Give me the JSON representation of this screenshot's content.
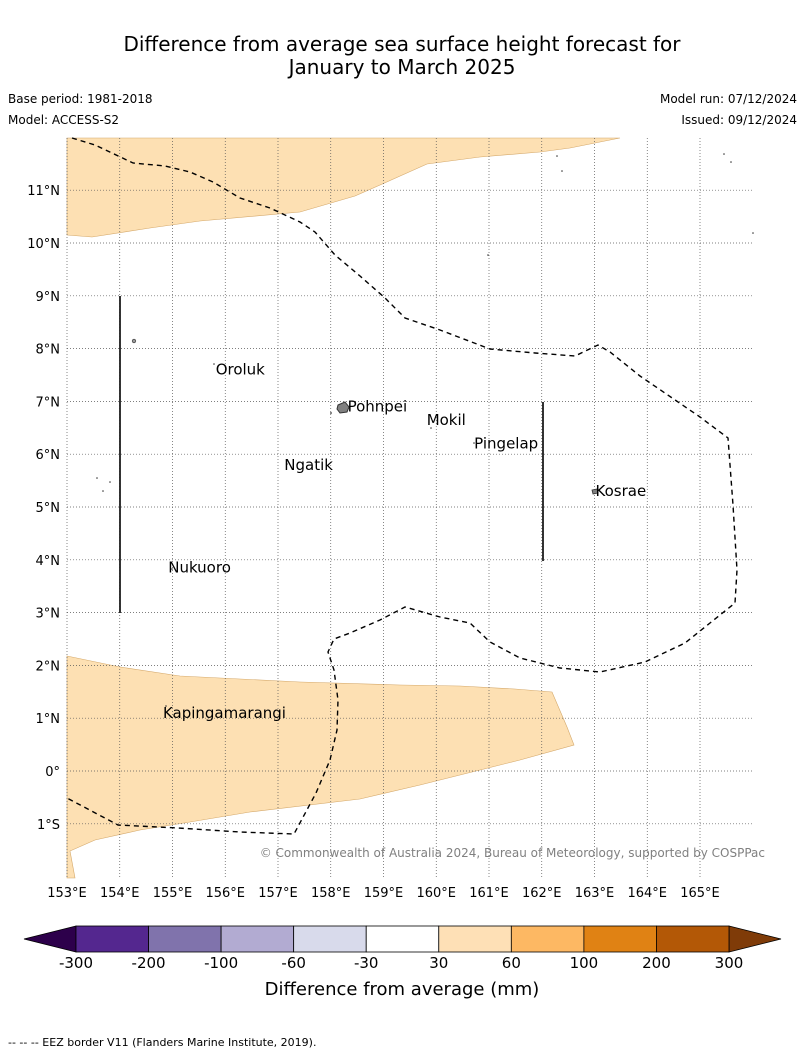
{
  "title": {
    "line1": "Difference from average sea surface height forecast for",
    "line2": "January to March 2025"
  },
  "meta": {
    "base_period": "Base period: 1981-2018",
    "model": "Model: ACCESS-S2",
    "model_run": "Model run: 07/12/2024",
    "issued": "Issued: 09/12/2024"
  },
  "map": {
    "lon_range": [
      153,
      166
    ],
    "lat_range": [
      -2,
      12
    ],
    "lon_ticks": [
      "153°E",
      "154°E",
      "155°E",
      "156°E",
      "157°E",
      "158°E",
      "159°E",
      "160°E",
      "161°E",
      "162°E",
      "163°E",
      "164°E",
      "165°E"
    ],
    "lat_ticks": [
      "1°S",
      "0°",
      "1°N",
      "2°N",
      "3°N",
      "4°N",
      "5°N",
      "6°N",
      "7°N",
      "8°N",
      "9°N",
      "10°N",
      "11°N"
    ],
    "places": [
      {
        "name": "Oroluk",
        "lon": 155.8,
        "lat": 7.6
      },
      {
        "name": "Pohnpei",
        "lon": 158.3,
        "lat": 6.9
      },
      {
        "name": "Mokil",
        "lon": 159.8,
        "lat": 6.65
      },
      {
        "name": "Pingelap",
        "lon": 160.7,
        "lat": 6.2
      },
      {
        "name": "Ngatik",
        "lon": 157.1,
        "lat": 5.8
      },
      {
        "name": "Kosrae",
        "lon": 163.0,
        "lat": 5.3
      },
      {
        "name": "Nukuoro",
        "lon": 154.9,
        "lat": 3.85
      },
      {
        "name": "Kapingamarangi",
        "lon": 154.8,
        "lat": 1.1
      }
    ],
    "copyright": "© Commonwealth of Australia 2024, Bureau of Meteorology, supported by COSPPac",
    "fill_color": "#fde0b3",
    "grid": true
  },
  "colorbar": {
    "title": "Difference from average (mm)",
    "labels": [
      "-300",
      "-200",
      "-100",
      "-60",
      "-30",
      "30",
      "60",
      "100",
      "200",
      "300"
    ],
    "colors": [
      "#54278f",
      "#8073ac",
      "#b2abd2",
      "#d8daeb",
      "#ffffff",
      "#fee0b6",
      "#fdb863",
      "#e08214",
      "#b35806"
    ],
    "under_color": "#2d004b",
    "over_color": "#7f3b08"
  },
  "footer": "--  --  -- EEZ border V11 (Flanders Marine Institute, 2019)."
}
